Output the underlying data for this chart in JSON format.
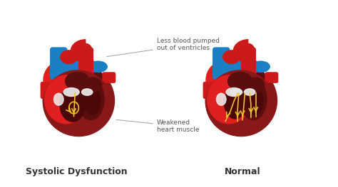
{
  "bg_color": "#ffffff",
  "label_left": "Systolic Dysfunction",
  "label_right": "Normal",
  "annotation1": "Less blood pumped\nout of ventricles",
  "annotation2": "Weakened\nheart muscle",
  "c_red": "#cc1a1a",
  "c_bright_red": "#e02020",
  "c_dark_red": "#8b1818",
  "c_darker_red": "#5c0e0e",
  "c_maroon": "#7a1515",
  "c_blue": "#1a7fc4",
  "c_blue2": "#0d6aad",
  "c_yellow": "#f0c030",
  "c_white": "#f0f0f0",
  "c_gray": "#888888",
  "label_fontsize": 9,
  "annot_fontsize": 6.5
}
